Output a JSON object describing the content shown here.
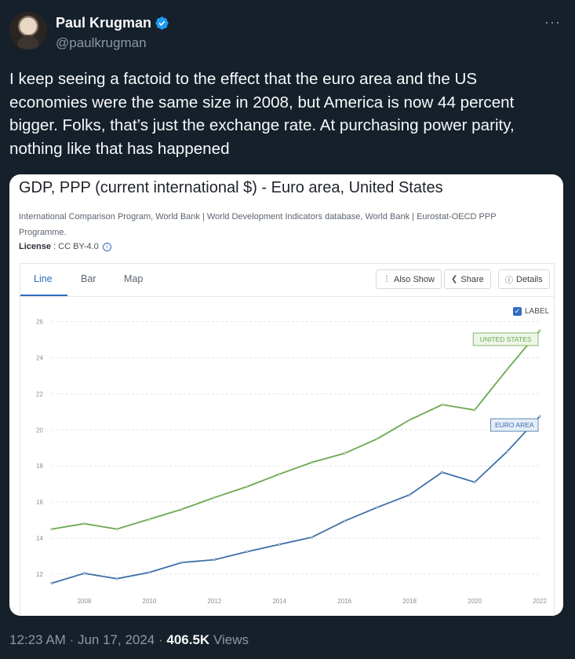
{
  "author": {
    "name": "Paul Krugman",
    "handle": "@paulkrugman"
  },
  "tweet": {
    "lines": [
      "I keep seeing a factoid to the effect that the euro area and the US",
      "economies were the same size in 2008, but America is now 44 percent",
      "bigger. Folks, that’s just the exchange rate. At purchasing power parity,",
      "nothing like that has happened"
    ]
  },
  "more_icon": "more-horizontal-icon",
  "card": {
    "title": "GDP, PPP (current international $) - Euro area, United States",
    "source_lines": [
      "International Comparison Program, World Bank | World Development Indicators database, World Bank | Eurostat-OECD PPP",
      "Programme."
    ],
    "license_label": "License",
    "license_value": " : CC BY-4.0",
    "tabs": [
      "Line",
      "Bar",
      "Map"
    ],
    "active_tab": "Line",
    "buttons": {
      "also_show": "Also Show",
      "share": "Share",
      "details": "Details"
    },
    "label_toggle": "LABEL"
  },
  "chart_data": {
    "type": "line",
    "x": [
      2007,
      2008,
      2009,
      2010,
      2011,
      2012,
      2013,
      2014,
      2015,
      2016,
      2017,
      2018,
      2019,
      2020,
      2021,
      2022
    ],
    "x_ticks": [
      "2008",
      "2010",
      "2012",
      "2014",
      "2016",
      "2018",
      "2020",
      "2022"
    ],
    "y_ticks": [
      "12",
      "14",
      "16",
      "18",
      "20",
      "22",
      "24",
      "26"
    ],
    "ylim": [
      11,
      26.5
    ],
    "grid": true,
    "series": [
      {
        "name": "UNITED STATES",
        "color": "#6aa84f",
        "values": [
          14.5,
          14.8,
          14.5,
          15.05,
          15.6,
          16.25,
          16.85,
          17.55,
          18.2,
          18.7,
          19.5,
          20.55,
          21.4,
          21.1,
          23.35,
          25.5
        ]
      },
      {
        "name": "EURO AREA",
        "color": "#3d6fa8",
        "values": [
          11.5,
          12.05,
          11.75,
          12.1,
          12.65,
          12.8,
          13.25,
          13.65,
          14.05,
          14.95,
          15.7,
          16.4,
          17.65,
          17.1,
          18.8,
          20.75
        ]
      }
    ]
  },
  "timestamp": {
    "time": "12:23 AM",
    "date": "Jun 17, 2024",
    "views_count": "406.5K",
    "views_label": "Views"
  }
}
